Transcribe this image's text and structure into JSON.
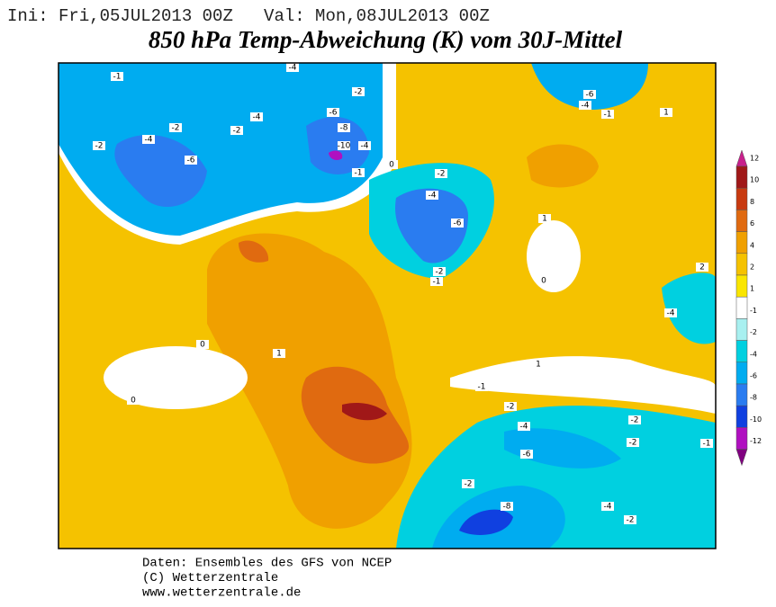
{
  "header": {
    "info": "Ini: Fri,05JUL2013 00Z   Val: Mon,08JUL2013 00Z",
    "title": "850 hPa Temp-Abweichung (K) vom 30J-Mittel"
  },
  "map": {
    "contour_labels": [
      "-4",
      "-1",
      "-2",
      "-4",
      "-6",
      "-2",
      "-2",
      "-4",
      "-6",
      "-8",
      "-10",
      "-4",
      "-2",
      "-1",
      "-2",
      "-4",
      "-6",
      "-2",
      "-1",
      "0",
      "1",
      "0",
      "-6",
      "-4",
      "-1",
      "1",
      "-4",
      "0",
      "1",
      "0",
      "-1",
      "-2",
      "-4",
      "-6",
      "-8",
      "-4",
      "-2",
      "-1",
      "-2",
      "1",
      "-2",
      "-2",
      "2"
    ]
  },
  "colorbar": {
    "labels": [
      "12",
      "10",
      "8",
      "6",
      "4",
      "2",
      "1",
      "-1",
      "-2",
      "-4",
      "-6",
      "-8",
      "-10",
      "-12"
    ],
    "colors": [
      "#c8208c",
      "#a01818",
      "#c83a10",
      "#e06a10",
      "#f0a000",
      "#f5c200",
      "#fae600",
      "#ffffff",
      "#a8f0f0",
      "#00d0e0",
      "#00acf0",
      "#2a7cf0",
      "#1040e0",
      "#b010c0",
      "#800080"
    ]
  },
  "footer": {
    "lines": [
      "Daten: Ensembles des GFS von NCEP",
      "(C) Wetterzentrale",
      "www.wetterzentrale.de"
    ]
  }
}
